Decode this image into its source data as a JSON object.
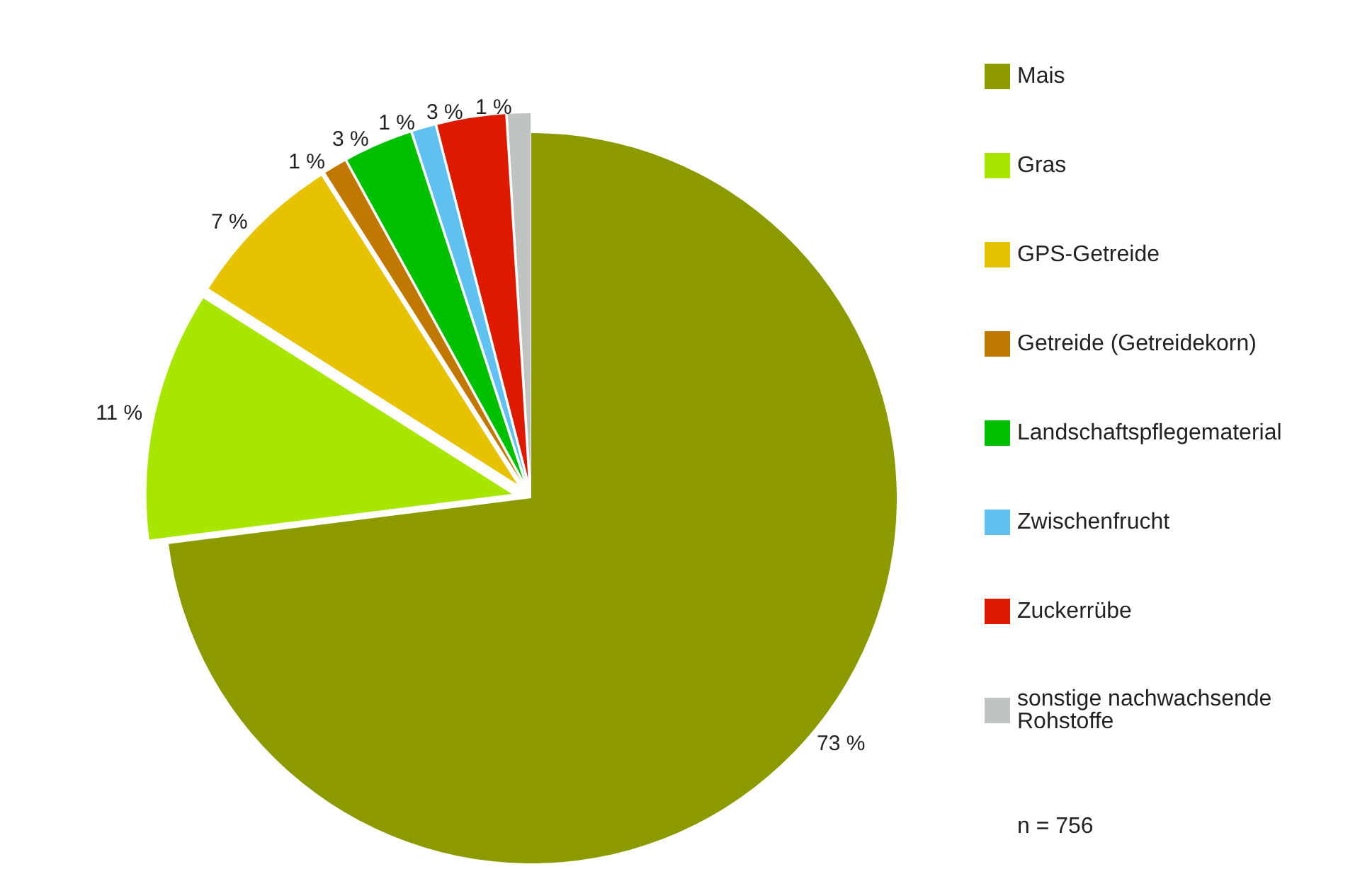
{
  "chart_data": {
    "type": "pie",
    "categories": [
      "Mais",
      "Gras",
      "GPS-Getreide",
      "Getreide (Getreidekorn)",
      "Landschaftspflegematerial",
      "Zwischenfrucht",
      "Zuckerrübe",
      "sonstige nachwachsende Rohstoffe"
    ],
    "values": [
      73,
      11,
      7,
      1,
      3,
      1,
      3,
      1
    ],
    "colors": [
      "#8c9a00",
      "#a8e600",
      "#e6c200",
      "#c07800",
      "#00c000",
      "#60c0f0",
      "#dd1a00",
      "#c0c4c0"
    ],
    "value_labels": [
      "73 %",
      "11 %",
      "7 %",
      "1 %",
      "3 %",
      "1 %",
      "3 %",
      "1 %"
    ],
    "legend": "right",
    "annotations": [
      "n = 756"
    ]
  }
}
